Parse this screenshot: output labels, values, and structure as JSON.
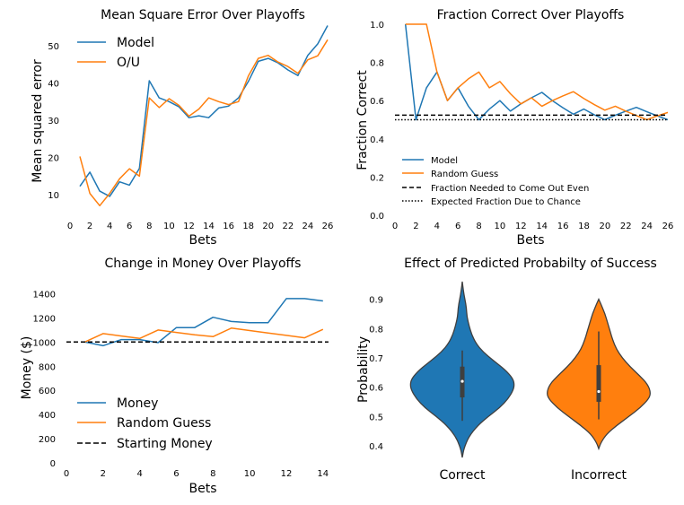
{
  "chart_data": [
    {
      "id": "mse",
      "type": "line",
      "title": "Mean Square Error Over Playoffs",
      "xlabel": "Bets",
      "ylabel": "Mean squared error",
      "xlim": [
        0,
        26
      ],
      "ylim": [
        5,
        56
      ],
      "xticks": [
        0,
        2,
        4,
        6,
        8,
        10,
        12,
        14,
        16,
        18,
        20,
        22,
        24,
        26
      ],
      "yticks": [
        10,
        20,
        30,
        40,
        50
      ],
      "legend": "upper-left",
      "series": [
        {
          "name": "Model",
          "color": "#1f77b4",
          "x": [
            1,
            2,
            3,
            4,
            5,
            6,
            7,
            8,
            9,
            10,
            11,
            12,
            13,
            14,
            15,
            16,
            17,
            18,
            19,
            20,
            21,
            22,
            23,
            24,
            25,
            26
          ],
          "y": [
            12.3,
            16.1,
            11.0,
            9.6,
            13.5,
            12.6,
            17.1,
            40.6,
            36.0,
            35.0,
            33.6,
            30.7,
            31.2,
            30.7,
            33.3,
            33.8,
            36.0,
            40.4,
            45.8,
            46.6,
            45.4,
            43.5,
            42.0,
            47.4,
            50.5,
            55.4
          ]
        },
        {
          "name": "O/U",
          "color": "#ff7f0e",
          "x": [
            1,
            2,
            3,
            4,
            5,
            6,
            7,
            8,
            9,
            10,
            11,
            12,
            13,
            14,
            15,
            16,
            17,
            18,
            19,
            20,
            21,
            22,
            23,
            24,
            25,
            26
          ],
          "y": [
            20.3,
            10.4,
            7.1,
            10.4,
            14.3,
            17.0,
            15.0,
            36.0,
            33.4,
            35.8,
            34.0,
            31.1,
            33.0,
            36.0,
            35.0,
            34.2,
            35.0,
            41.9,
            46.6,
            47.4,
            45.6,
            44.4,
            42.6,
            46.2,
            47.3,
            51.6
          ]
        }
      ]
    },
    {
      "id": "fraction",
      "type": "line",
      "title": "Fraction Correct Over Playoffs",
      "xlabel": "Bets",
      "ylabel": "Fraction Correct",
      "xlim": [
        0,
        26
      ],
      "ylim": [
        0,
        1
      ],
      "xticks": [
        0,
        2,
        4,
        6,
        8,
        10,
        12,
        14,
        16,
        18,
        20,
        22,
        24,
        26
      ],
      "yticks": [
        "0.0",
        "0.2",
        "0.4",
        "0.6",
        "0.8",
        "1.0"
      ],
      "legend": "lower-left",
      "series": [
        {
          "name": "Model",
          "color": "#1f77b4",
          "style": "solid",
          "x": [
            1,
            2,
            3,
            4,
            5,
            6,
            7,
            8,
            9,
            10,
            11,
            12,
            13,
            14,
            15,
            16,
            17,
            18,
            19,
            20,
            21,
            22,
            23,
            24,
            25,
            26
          ],
          "y": [
            1.0,
            0.5,
            0.667,
            0.75,
            0.6,
            0.667,
            0.571,
            0.5,
            0.556,
            0.6,
            0.545,
            0.583,
            0.615,
            0.643,
            0.6,
            0.563,
            0.529,
            0.556,
            0.526,
            0.5,
            0.524,
            0.545,
            0.565,
            0.542,
            0.52,
            0.5
          ]
        },
        {
          "name": "Random Guess",
          "color": "#ff7f0e",
          "style": "solid",
          "x": [
            1,
            2,
            3,
            4,
            5,
            6,
            7,
            8,
            9,
            10,
            11,
            12,
            13,
            14,
            15,
            16,
            17,
            18,
            19,
            20,
            21,
            22,
            23,
            24,
            25,
            26
          ],
          "y": [
            1.0,
            1.0,
            1.0,
            0.75,
            0.6,
            0.667,
            0.714,
            0.75,
            0.667,
            0.7,
            0.636,
            0.583,
            0.615,
            0.571,
            0.6,
            0.625,
            0.647,
            0.611,
            0.579,
            0.55,
            0.571,
            0.545,
            0.522,
            0.5,
            0.52,
            0.538
          ]
        },
        {
          "name": "Fraction Needed to Come Out Even",
          "color": "#000000",
          "style": "dashed",
          "x": [
            0,
            26
          ],
          "y": [
            0.5238,
            0.5238
          ]
        },
        {
          "name": "Expected Fraction Due to Chance",
          "color": "#000000",
          "style": "dotted",
          "x": [
            0,
            26
          ],
          "y": [
            0.5,
            0.5
          ]
        }
      ]
    },
    {
      "id": "money",
      "type": "line",
      "title": "Change in Money Over Playoffs",
      "xlabel": "Bets",
      "ylabel": "Money ($)",
      "xlim": [
        0,
        14.5
      ],
      "ylim": [
        0,
        1500
      ],
      "xticks": [
        0,
        2,
        4,
        6,
        8,
        10,
        12,
        14
      ],
      "yticks": [
        0,
        200,
        400,
        600,
        800,
        1000,
        1200,
        1400
      ],
      "legend": "lower-left",
      "series": [
        {
          "name": "Money",
          "color": "#1f77b4",
          "style": "solid",
          "x": [
            1,
            2,
            3,
            4,
            5,
            6,
            7,
            8,
            9,
            10,
            11,
            12,
            13,
            14
          ],
          "y": [
            1000,
            970,
            1020,
            1020,
            995,
            1120,
            1120,
            1205,
            1170,
            1160,
            1160,
            1360,
            1360,
            1340
          ]
        },
        {
          "name": "Random Guess",
          "color": "#ff7f0e",
          "style": "solid",
          "x": [
            1,
            2,
            3,
            4,
            5,
            6,
            7,
            8,
            9,
            10,
            11,
            12,
            13,
            14
          ],
          "y": [
            1000,
            1070,
            1050,
            1030,
            1100,
            1080,
            1060,
            1045,
            1115,
            1095,
            1075,
            1055,
            1035,
            1105
          ]
        },
        {
          "name": "Starting Money",
          "color": "#000000",
          "style": "dashed",
          "x": [
            0,
            14.3
          ],
          "y": [
            1000,
            1000
          ]
        }
      ]
    },
    {
      "id": "violin",
      "type": "violin",
      "title": "Effect of Predicted Probabilty of Success",
      "xlabel": "",
      "ylabel": "Probability",
      "ylim": [
        0.36,
        0.96
      ],
      "yticks": [
        0.4,
        0.5,
        0.6,
        0.7,
        0.8,
        0.9
      ],
      "categories": [
        "Correct",
        "Incorrect"
      ],
      "groups": [
        {
          "name": "Correct",
          "color": "#1f77b4",
          "min": 0.485,
          "q1": 0.565,
          "median": 0.62,
          "q3": 0.67,
          "max": 0.725,
          "profile": [
            [
              0.36,
              0
            ],
            [
              0.39,
              0.03
            ],
            [
              0.43,
              0.12
            ],
            [
              0.47,
              0.3
            ],
            [
              0.5,
              0.5
            ],
            [
              0.53,
              0.72
            ],
            [
              0.56,
              0.88
            ],
            [
              0.59,
              0.98
            ],
            [
              0.61,
              1.0
            ],
            [
              0.63,
              0.97
            ],
            [
              0.66,
              0.82
            ],
            [
              0.69,
              0.6
            ],
            [
              0.72,
              0.4
            ],
            [
              0.75,
              0.26
            ],
            [
              0.78,
              0.18
            ],
            [
              0.81,
              0.13
            ],
            [
              0.84,
              0.09
            ],
            [
              0.87,
              0.08
            ],
            [
              0.9,
              0.05
            ],
            [
              0.93,
              0.02
            ],
            [
              0.96,
              0
            ]
          ]
        },
        {
          "name": "Incorrect",
          "color": "#ff7f0e",
          "min": 0.49,
          "q1": 0.55,
          "median": 0.585,
          "q3": 0.675,
          "max": 0.79,
          "profile": [
            [
              0.39,
              0
            ],
            [
              0.41,
              0.04
            ],
            [
              0.44,
              0.15
            ],
            [
              0.47,
              0.35
            ],
            [
              0.5,
              0.58
            ],
            [
              0.53,
              0.8
            ],
            [
              0.56,
              0.96
            ],
            [
              0.58,
              1.0
            ],
            [
              0.61,
              0.94
            ],
            [
              0.64,
              0.78
            ],
            [
              0.67,
              0.6
            ],
            [
              0.7,
              0.45
            ],
            [
              0.73,
              0.34
            ],
            [
              0.76,
              0.27
            ],
            [
              0.79,
              0.22
            ],
            [
              0.82,
              0.17
            ],
            [
              0.85,
              0.12
            ],
            [
              0.88,
              0.05
            ],
            [
              0.9,
              0
            ]
          ]
        }
      ]
    }
  ]
}
